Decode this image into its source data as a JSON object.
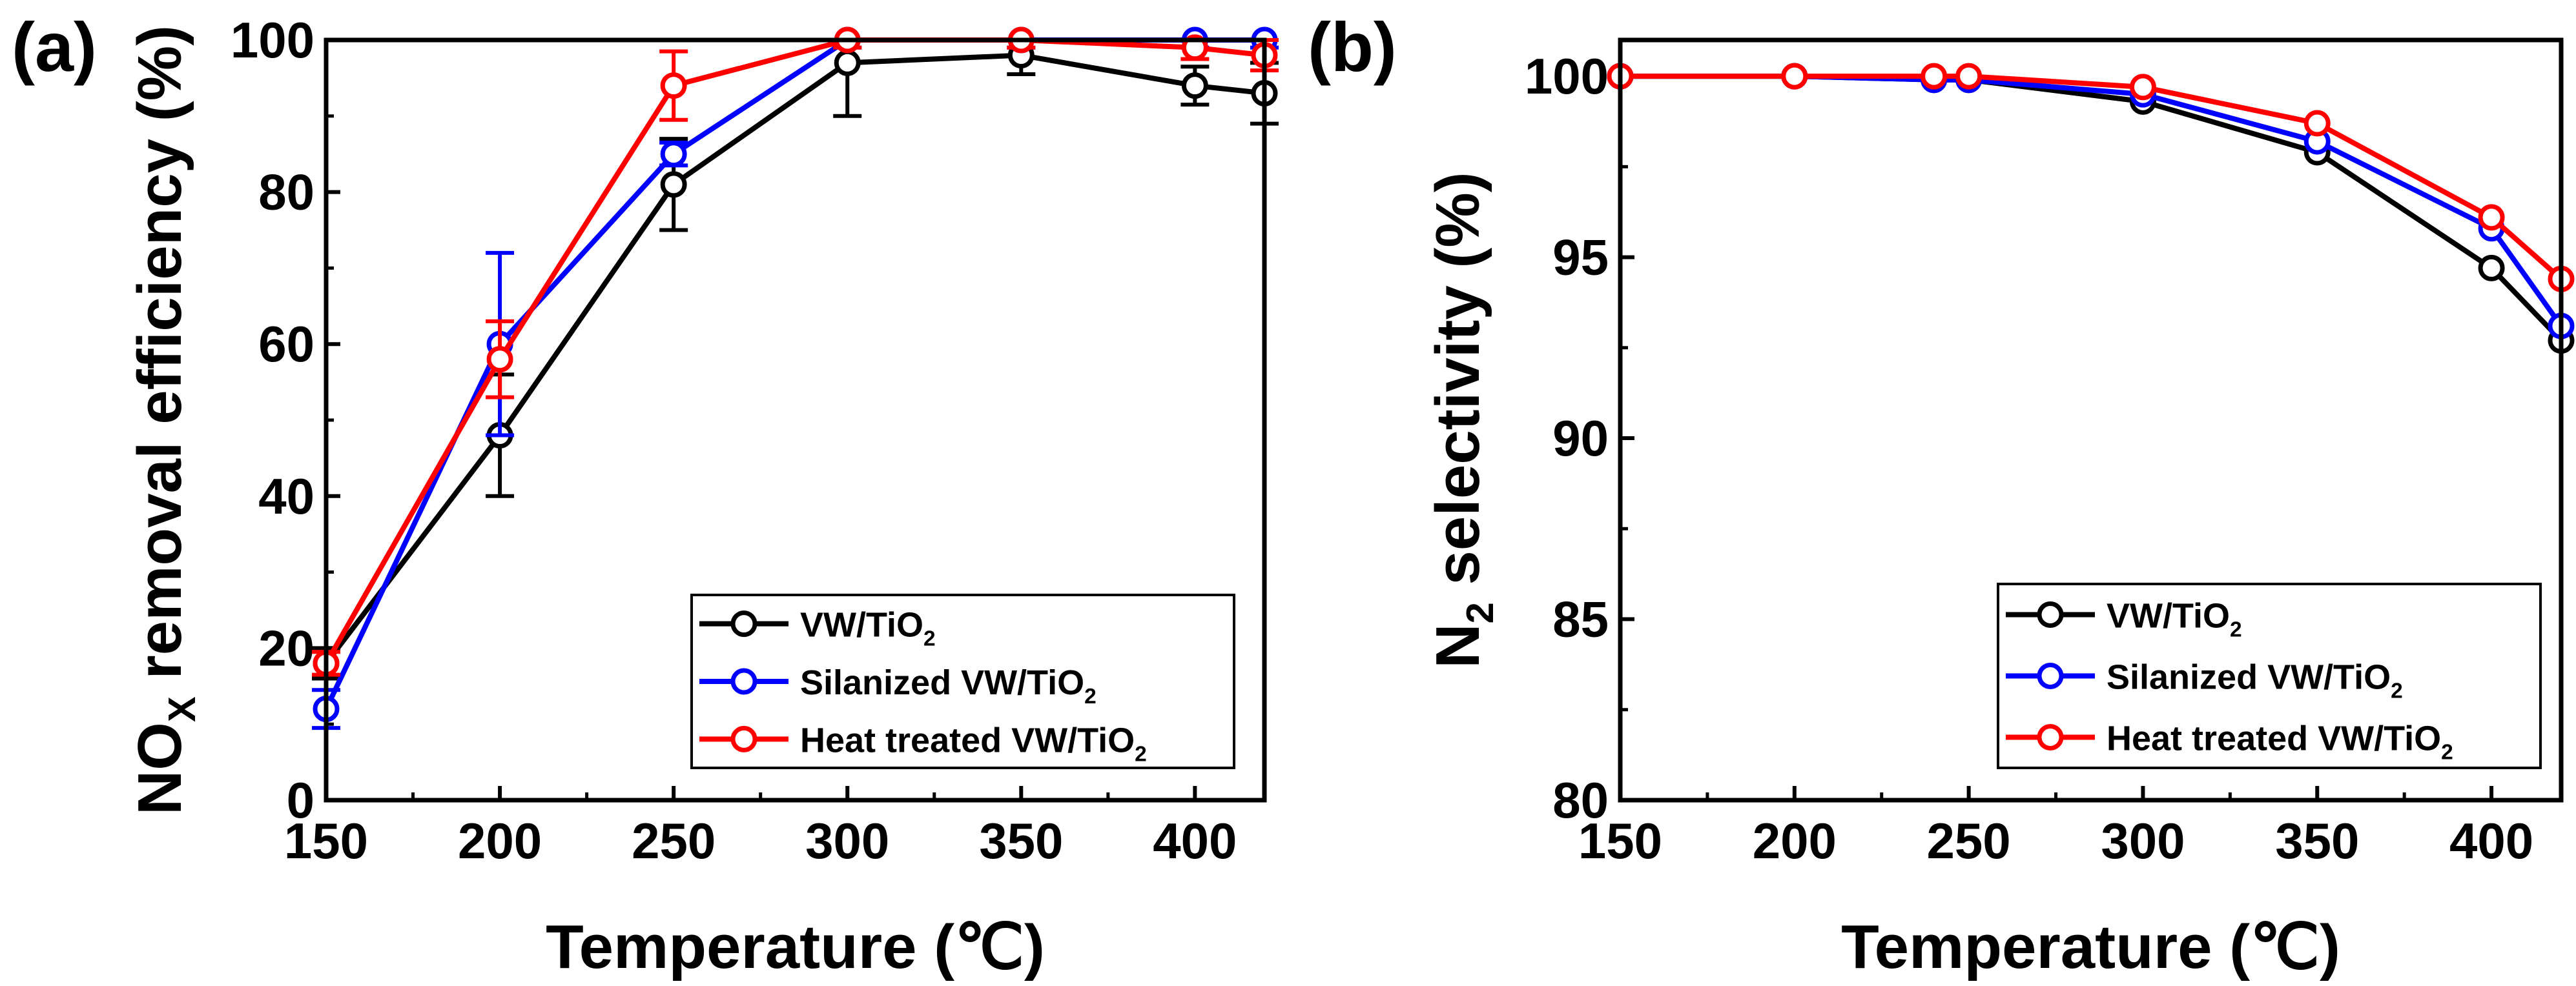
{
  "chart_data": [
    {
      "type": "line",
      "panel_label": "(a)",
      "xlabel": "Temperature (℃)",
      "ylabel": {
        "base": "NO",
        "sub": "X",
        "rest": " removal efficiency (%)"
      },
      "xlim": [
        150,
        420
      ],
      "ylim": [
        0,
        100
      ],
      "xticks": [
        150,
        200,
        250,
        300,
        350,
        400
      ],
      "yticks": [
        0,
        20,
        40,
        60,
        80,
        100
      ],
      "legend_position": "bottom-right",
      "series": [
        {
          "name": {
            "base": "VW/TiO",
            "sub": "2"
          },
          "color": "#000000",
          "x": [
            150,
            200,
            250,
            300,
            350,
            400,
            420
          ],
          "values": [
            18,
            48,
            81,
            97,
            98,
            94,
            93
          ],
          "errors": [
            2,
            8,
            6,
            7,
            2.5,
            2.5,
            4
          ]
        },
        {
          "name": {
            "base": "Silanized VW/TiO",
            "sub": "2"
          },
          "color": "#0000ff",
          "x": [
            150,
            200,
            250,
            300,
            350,
            400,
            420
          ],
          "values": [
            12,
            60,
            85,
            100,
            100,
            100,
            100
          ],
          "errors": [
            2.5,
            12,
            1.5,
            1,
            1,
            1,
            1
          ]
        },
        {
          "name": {
            "base": "Heat treated VW/TiO",
            "sub": "2"
          },
          "color": "#ff0000",
          "x": [
            150,
            200,
            250,
            300,
            350,
            400,
            420
          ],
          "values": [
            18,
            58,
            94,
            100,
            100,
            99,
            98
          ],
          "errors": [
            1.5,
            5,
            4.5,
            1,
            1,
            1.5,
            2
          ]
        }
      ]
    },
    {
      "type": "line",
      "panel_label": "(b)",
      "xlabel": "Temperature (℃)",
      "ylabel": {
        "base": "N",
        "sub": "2",
        "rest": " selectivity (%)"
      },
      "xlim": [
        150,
        420
      ],
      "ylim": [
        80,
        101
      ],
      "xticks": [
        150,
        200,
        250,
        300,
        350,
        400
      ],
      "yticks": [
        80,
        85,
        90,
        95,
        100
      ],
      "legend_position": "bottom-right",
      "series": [
        {
          "name": {
            "base": "VW/TiO",
            "sub": "2"
          },
          "color": "#000000",
          "x": [
            150,
            200,
            240,
            250,
            300,
            350,
            400,
            420
          ],
          "values": [
            100,
            100,
            99.9,
            99.9,
            99.3,
            97.9,
            94.7,
            92.7
          ]
        },
        {
          "name": {
            "base": "Silanized VW/TiO",
            "sub": "2"
          },
          "color": "#0000ff",
          "x": [
            150,
            200,
            240,
            250,
            300,
            350,
            400,
            420
          ],
          "values": [
            100,
            100,
            99.9,
            99.9,
            99.5,
            98.2,
            95.8,
            93.1
          ]
        },
        {
          "name": {
            "base": "Heat treated VW/TiO",
            "sub": "2"
          },
          "color": "#ff0000",
          "x": [
            150,
            200,
            240,
            250,
            300,
            350,
            400,
            420
          ],
          "values": [
            100,
            100,
            100,
            100,
            99.7,
            98.7,
            96.1,
            94.4
          ]
        }
      ]
    }
  ]
}
